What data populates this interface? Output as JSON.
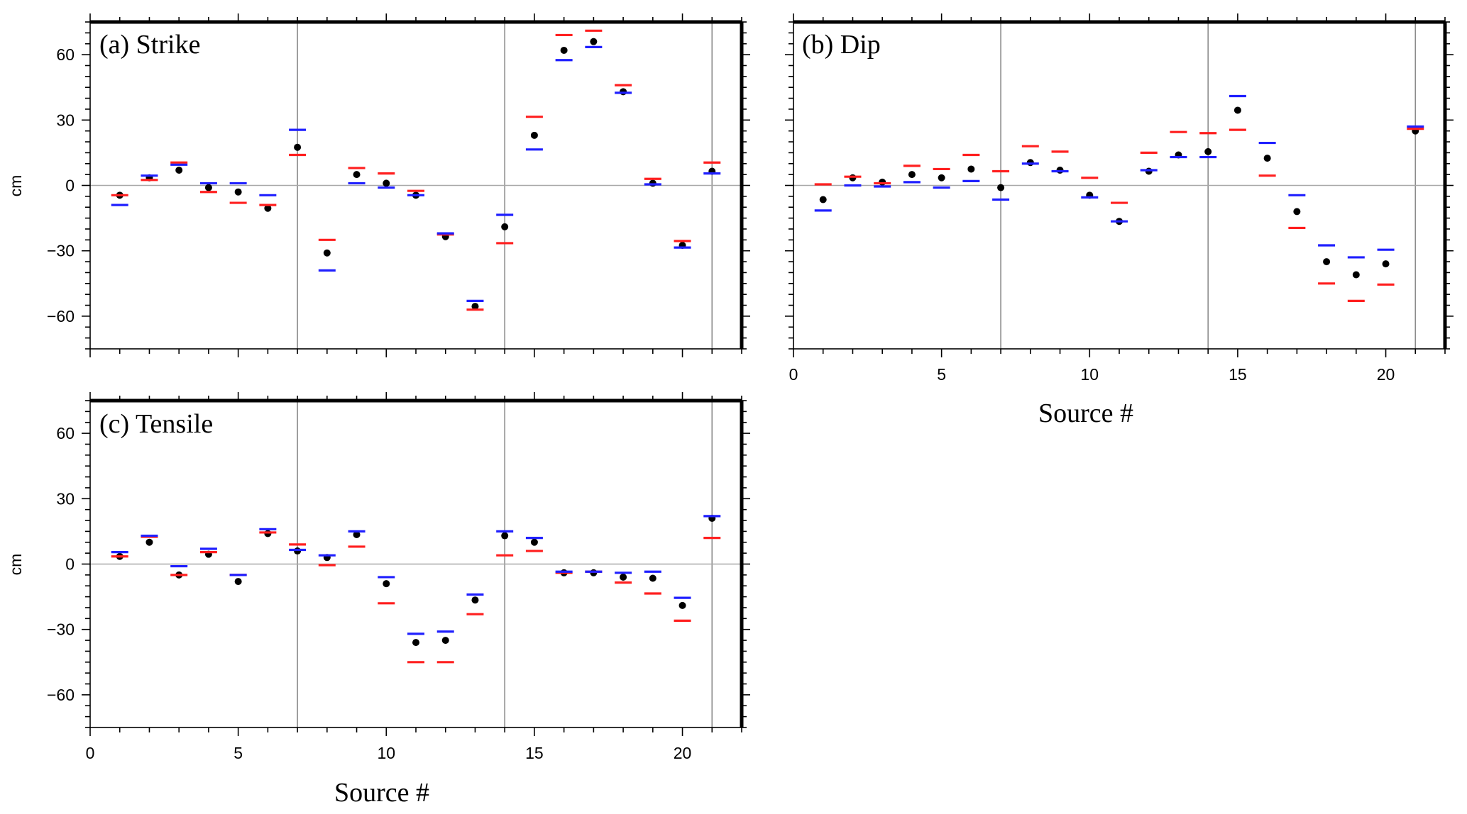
{
  "chart_data": [
    {
      "type": "scatter",
      "title": "(a) Strike",
      "xlabel": "",
      "ylabel": "cm",
      "xlim": [
        0,
        22
      ],
      "ylim": [
        -75,
        75
      ],
      "xticks": [
        0,
        5,
        10,
        15,
        20
      ],
      "yticks": [
        -60,
        -30,
        0,
        30,
        60
      ],
      "grid": false,
      "reference_lines_x": [
        7,
        14,
        21
      ],
      "reference_line_y": 0,
      "colors": {
        "point": "#000000",
        "upper": "#ff1f1f",
        "lower": "#1f1fff"
      },
      "x": [
        1,
        2,
        3,
        4,
        5,
        6,
        7,
        8,
        9,
        10,
        11,
        12,
        13,
        14,
        15,
        16,
        17,
        18,
        19,
        20,
        21
      ],
      "series": [
        {
          "marker": "dot",
          "color": "#000000",
          "values": [
            -4.5,
            3.5,
            7,
            -1,
            -3,
            -10.5,
            17.5,
            -31,
            5,
            1,
            -4.5,
            -23.5,
            -55.5,
            -19,
            23,
            62,
            66,
            43,
            1,
            -27.5,
            6.5
          ]
        },
        {
          "marker": "dash",
          "color": "#ff1f1f",
          "values": [
            -4.5,
            2.5,
            10.5,
            -3,
            -8,
            -9,
            14,
            -25,
            8,
            5.5,
            -2.5,
            -22.5,
            -57,
            -26.5,
            31.5,
            69,
            71,
            46,
            3,
            -25.5,
            10.5
          ]
        },
        {
          "marker": "dash",
          "color": "#1f1fff",
          "values": [
            -9,
            4.5,
            9.5,
            1,
            1,
            -4.5,
            25.5,
            -39,
            1,
            -1,
            -4.5,
            -22,
            -53,
            -13.5,
            16.5,
            57.5,
            63.5,
            42.5,
            0.5,
            -28.5,
            5.5
          ]
        }
      ]
    },
    {
      "type": "scatter",
      "title": "(b) Dip",
      "xlabel": "Source #",
      "ylabel": "",
      "xlim": [
        0,
        22
      ],
      "ylim": [
        -75,
        75
      ],
      "xticks": [
        0,
        5,
        10,
        15,
        20
      ],
      "yticks": [
        -60,
        -30,
        0,
        30,
        60
      ],
      "grid": false,
      "reference_lines_x": [
        7,
        14,
        21
      ],
      "reference_line_y": 0,
      "colors": {
        "point": "#000000",
        "upper": "#ff1f1f",
        "lower": "#1f1fff"
      },
      "x": [
        1,
        2,
        3,
        4,
        5,
        6,
        7,
        8,
        9,
        10,
        11,
        12,
        13,
        14,
        15,
        16,
        17,
        18,
        19,
        20,
        21
      ],
      "series": [
        {
          "marker": "dot",
          "color": "#000000",
          "values": [
            -6.5,
            3.5,
            1.5,
            5,
            3.5,
            7.5,
            -1,
            10.5,
            7,
            -4.5,
            -16.5,
            6.5,
            14,
            15.5,
            34.5,
            12.5,
            -12,
            -35,
            -41,
            -36,
            25
          ]
        },
        {
          "marker": "dash",
          "color": "#ff1f1f",
          "values": [
            0.5,
            4,
            1,
            9,
            7.5,
            14,
            6.5,
            18,
            15.5,
            3.5,
            -8,
            15,
            24.5,
            24,
            25.5,
            4.5,
            -19.5,
            -45,
            -53,
            -45.5,
            26
          ]
        },
        {
          "marker": "dash",
          "color": "#1f1fff",
          "values": [
            -11.5,
            0,
            -0.5,
            1.5,
            -1,
            2,
            -6.5,
            10,
            6.5,
            -5.5,
            -16.5,
            7,
            13,
            13,
            41,
            19.5,
            -4.5,
            -27.5,
            -33,
            -29.5,
            27
          ]
        }
      ]
    },
    {
      "type": "scatter",
      "title": "(c) Tensile",
      "xlabel": "Source #",
      "ylabel": "cm",
      "xlim": [
        0,
        22
      ],
      "ylim": [
        -75,
        75
      ],
      "xticks": [
        0,
        5,
        10,
        15,
        20
      ],
      "yticks": [
        -60,
        -30,
        0,
        30,
        60
      ],
      "grid": false,
      "reference_lines_x": [
        7,
        14,
        21
      ],
      "reference_line_y": 0,
      "colors": {
        "point": "#000000",
        "upper": "#ff1f1f",
        "lower": "#1f1fff"
      },
      "x": [
        1,
        2,
        3,
        4,
        5,
        6,
        7,
        8,
        9,
        10,
        11,
        12,
        13,
        14,
        15,
        16,
        17,
        18,
        19,
        20,
        21
      ],
      "series": [
        {
          "marker": "dot",
          "color": "#000000",
          "values": [
            3.5,
            10,
            -5,
            4.5,
            -8,
            14,
            6,
            3,
            13.5,
            -9,
            -36,
            -35,
            -16.5,
            13,
            10,
            -4,
            -4,
            -6,
            -6.5,
            -19,
            21
          ]
        },
        {
          "marker": "dash",
          "color": "#ff1f1f",
          "values": [
            3.5,
            12.5,
            -5,
            5.5,
            -5,
            14.5,
            9,
            -0.5,
            8,
            -18,
            -45,
            -45,
            -23,
            4,
            6,
            -4,
            -3.5,
            -8.5,
            -13.5,
            -26,
            12
          ]
        },
        {
          "marker": "dash",
          "color": "#1f1fff",
          "values": [
            5.5,
            13,
            -1,
            7,
            -5,
            16,
            6.5,
            4,
            15,
            -6,
            -32,
            -31,
            -14,
            15,
            12,
            -3.5,
            -3.5,
            -4,
            -3.5,
            -15.5,
            22
          ]
        }
      ]
    }
  ]
}
